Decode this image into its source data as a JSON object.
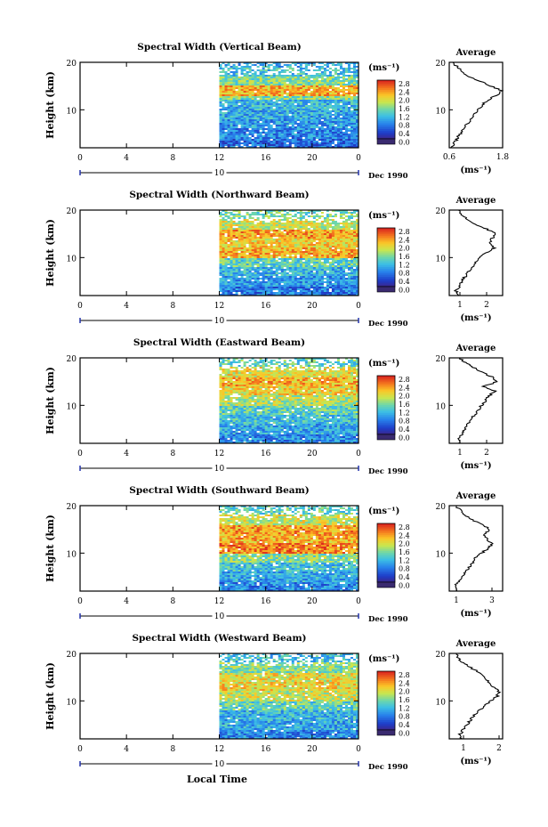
{
  "figure": {
    "x_axis_label": "Local Time",
    "date_label": "Dec 1990",
    "colorbar_unit": "(ms⁻¹)",
    "average_title": "Average",
    "average_unit": "(ms⁻¹)"
  },
  "chart_data": [
    {
      "type": "heatmap",
      "title": "Spectral Width (Vertical Beam)",
      "ylabel": "Height (km)",
      "xlabel": "Local Time",
      "xlim": [
        0,
        24
      ],
      "ylim": [
        2,
        20
      ],
      "x_ticks": [
        "0",
        "4",
        "8",
        "12",
        "16",
        "20",
        "0"
      ],
      "y_ticks": [
        "20",
        "10"
      ],
      "date_marker": "10",
      "data_start_hour": 12,
      "colorbar": {
        "unit": "(ms⁻¹)",
        "ticks": [
          "2.8",
          "2.4",
          "2.0",
          "1.6",
          "1.2",
          "0.8",
          "0.4",
          "0.0"
        ],
        "range": [
          0,
          3.0
        ]
      },
      "layers": [
        {
          "from": 2,
          "to": 4,
          "value": 0.6
        },
        {
          "from": 4,
          "to": 6,
          "value": 0.8
        },
        {
          "from": 6,
          "to": 8,
          "value": 0.9
        },
        {
          "from": 8,
          "to": 10,
          "value": 1.0
        },
        {
          "from": 10,
          "to": 12,
          "value": 1.1
        },
        {
          "from": 12,
          "to": 13,
          "value": 1.6
        },
        {
          "from": 13,
          "to": 15,
          "value": 2.3
        },
        {
          "from": 15,
          "to": 17,
          "value": 1.6
        },
        {
          "from": 17,
          "to": 19,
          "value": 1.2
        },
        {
          "from": 19,
          "to": 20,
          "value": 1.0
        }
      ],
      "average": {
        "title": "Average",
        "xlabel": "(ms⁻¹)",
        "xlim": [
          0.6,
          1.8
        ],
        "x_ticks": [
          "0.6",
          "1.8"
        ],
        "y_ticks": [
          "20",
          "10"
        ],
        "heights": [
          2,
          3,
          4,
          5,
          6,
          7,
          8,
          9,
          10,
          11,
          12,
          13,
          14,
          15,
          16,
          17,
          18,
          19,
          20
        ],
        "values": [
          0.62,
          0.72,
          0.78,
          0.85,
          0.92,
          1.0,
          1.08,
          1.15,
          1.25,
          1.35,
          1.45,
          1.65,
          1.78,
          1.55,
          1.3,
          1.05,
          0.9,
          0.78,
          0.68
        ]
      }
    },
    {
      "type": "heatmap",
      "title": "Spectral Width (Northward Beam)",
      "ylabel": "Height (km)",
      "xlabel": "Local Time",
      "xlim": [
        0,
        24
      ],
      "ylim": [
        2,
        20
      ],
      "x_ticks": [
        "0",
        "4",
        "8",
        "12",
        "16",
        "20",
        "0"
      ],
      "y_ticks": [
        "20",
        "10"
      ],
      "date_marker": "10",
      "data_start_hour": 12,
      "colorbar": {
        "unit": "(ms⁻¹)",
        "ticks": [
          "2.8",
          "2.4",
          "2.0",
          "1.6",
          "1.2",
          "0.8",
          "0.4",
          "0.0"
        ],
        "range": [
          0,
          3.0
        ]
      },
      "layers": [
        {
          "from": 2,
          "to": 4,
          "value": 0.7
        },
        {
          "from": 4,
          "to": 6,
          "value": 0.9
        },
        {
          "from": 6,
          "to": 8,
          "value": 1.1
        },
        {
          "from": 8,
          "to": 10,
          "value": 1.4
        },
        {
          "from": 10,
          "to": 12,
          "value": 2.3
        },
        {
          "from": 12,
          "to": 14,
          "value": 2.1
        },
        {
          "from": 14,
          "to": 16,
          "value": 2.4
        },
        {
          "from": 16,
          "to": 18,
          "value": 1.9
        },
        {
          "from": 18,
          "to": 20,
          "value": 1.5
        }
      ],
      "average": {
        "title": "Average",
        "xlabel": "(ms⁻¹)",
        "xlim": [
          0.6,
          2.6
        ],
        "x_ticks": [
          "1",
          "2"
        ],
        "y_ticks": [
          "20",
          "10"
        ],
        "heights": [
          2,
          3,
          4,
          5,
          6,
          7,
          8,
          9,
          10,
          11,
          12,
          13,
          14,
          15,
          16,
          17,
          18,
          19,
          20
        ],
        "values": [
          0.9,
          0.85,
          1.0,
          1.05,
          1.2,
          1.3,
          1.45,
          1.6,
          1.75,
          2.0,
          2.3,
          2.1,
          2.2,
          2.35,
          2.0,
          1.6,
          1.3,
          1.05,
          0.95
        ]
      }
    },
    {
      "type": "heatmap",
      "title": "Spectral Width (Eastward Beam)",
      "ylabel": "Height (km)",
      "xlabel": "Local Time",
      "xlim": [
        0,
        24
      ],
      "ylim": [
        2,
        20
      ],
      "x_ticks": [
        "0",
        "4",
        "8",
        "12",
        "16",
        "20",
        "0"
      ],
      "y_ticks": [
        "20",
        "10"
      ],
      "date_marker": "10",
      "data_start_hour": 12,
      "colorbar": {
        "unit": "(ms⁻¹)",
        "ticks": [
          "2.8",
          "2.4",
          "2.0",
          "1.6",
          "1.2",
          "0.8",
          "0.4",
          "0.0"
        ],
        "range": [
          0,
          3.0
        ]
      },
      "layers": [
        {
          "from": 2,
          "to": 4,
          "value": 0.8
        },
        {
          "from": 4,
          "to": 6,
          "value": 1.0
        },
        {
          "from": 6,
          "to": 8,
          "value": 1.2
        },
        {
          "from": 8,
          "to": 10,
          "value": 1.4
        },
        {
          "from": 10,
          "to": 12,
          "value": 1.8
        },
        {
          "from": 12,
          "to": 14,
          "value": 2.1
        },
        {
          "from": 14,
          "to": 16,
          "value": 2.3
        },
        {
          "from": 16,
          "to": 18,
          "value": 2.0
        },
        {
          "from": 18,
          "to": 20,
          "value": 1.4
        }
      ],
      "average": {
        "title": "Average",
        "xlabel": "(ms⁻¹)",
        "xlim": [
          0.6,
          2.6
        ],
        "x_ticks": [
          "1",
          "2"
        ],
        "y_ticks": [
          "20",
          "10"
        ],
        "heights": [
          2,
          3,
          4,
          5,
          6,
          7,
          8,
          9,
          10,
          11,
          12,
          13,
          14,
          15,
          16,
          17,
          18,
          19,
          20
        ],
        "values": [
          1.0,
          0.95,
          1.1,
          1.2,
          1.3,
          1.4,
          1.55,
          1.7,
          1.8,
          1.95,
          2.1,
          2.3,
          1.9,
          2.4,
          2.2,
          1.8,
          1.5,
          1.2,
          1.0
        ]
      }
    },
    {
      "type": "heatmap",
      "title": "Spectral Width (Southward Beam)",
      "ylabel": "Height (km)",
      "xlabel": "Local Time",
      "xlim": [
        0,
        24
      ],
      "ylim": [
        2,
        20
      ],
      "x_ticks": [
        "0",
        "4",
        "8",
        "12",
        "16",
        "20",
        "0"
      ],
      "y_ticks": [
        "20",
        "10"
      ],
      "date_marker": "10",
      "data_start_hour": 12,
      "colorbar": {
        "unit": "(ms⁻¹)",
        "ticks": [
          "2.8",
          "2.4",
          "2.0",
          "1.6",
          "1.2",
          "0.8",
          "0.4",
          "0.0"
        ],
        "range": [
          0,
          3.0
        ]
      },
      "layers": [
        {
          "from": 2,
          "to": 4,
          "value": 0.8
        },
        {
          "from": 4,
          "to": 6,
          "value": 1.0
        },
        {
          "from": 6,
          "to": 8,
          "value": 1.2
        },
        {
          "from": 8,
          "to": 10,
          "value": 1.6
        },
        {
          "from": 10,
          "to": 12,
          "value": 2.5
        },
        {
          "from": 12,
          "to": 14,
          "value": 2.3
        },
        {
          "from": 14,
          "to": 16,
          "value": 2.4
        },
        {
          "from": 16,
          "to": 18,
          "value": 1.9
        },
        {
          "from": 18,
          "to": 20,
          "value": 1.4
        }
      ],
      "average": {
        "title": "Average",
        "xlabel": "(ms⁻¹)",
        "xlim": [
          0.6,
          3.6
        ],
        "x_ticks": [
          "1",
          "3"
        ],
        "y_ticks": [
          "20",
          "10"
        ],
        "heights": [
          2,
          3,
          4,
          5,
          6,
          7,
          8,
          9,
          10,
          11,
          12,
          13,
          14,
          15,
          16,
          17,
          18,
          19,
          20
        ],
        "values": [
          1.0,
          0.95,
          1.1,
          1.3,
          1.5,
          1.7,
          1.9,
          2.1,
          2.4,
          2.8,
          3.0,
          2.7,
          2.6,
          2.9,
          2.4,
          1.9,
          1.5,
          1.2,
          1.0
        ]
      }
    },
    {
      "type": "heatmap",
      "title": "Spectral Width (Westward Beam)",
      "ylabel": "Height (km)",
      "xlabel": "Local Time",
      "xlim": [
        0,
        24
      ],
      "ylim": [
        2,
        20
      ],
      "x_ticks": [
        "0",
        "4",
        "8",
        "12",
        "16",
        "20",
        "0"
      ],
      "y_ticks": [
        "20",
        "10"
      ],
      "date_marker": "10",
      "data_start_hour": 12,
      "colorbar": {
        "unit": "(ms⁻¹)",
        "ticks": [
          "2.8",
          "2.4",
          "2.0",
          "1.6",
          "1.2",
          "0.8",
          "0.4",
          "0.0"
        ],
        "range": [
          0,
          3.0
        ]
      },
      "layers": [
        {
          "from": 2,
          "to": 4,
          "value": 0.8
        },
        {
          "from": 4,
          "to": 6,
          "value": 1.0
        },
        {
          "from": 6,
          "to": 8,
          "value": 1.1
        },
        {
          "from": 8,
          "to": 10,
          "value": 1.4
        },
        {
          "from": 10,
          "to": 12,
          "value": 1.9
        },
        {
          "from": 12,
          "to": 14,
          "value": 2.1
        },
        {
          "from": 14,
          "to": 16,
          "value": 2.0
        },
        {
          "from": 16,
          "to": 18,
          "value": 1.6
        },
        {
          "from": 18,
          "to": 20,
          "value": 1.2
        }
      ],
      "average": {
        "title": "Average",
        "xlabel": "(ms⁻¹)",
        "xlim": [
          0.6,
          2.1
        ],
        "x_ticks": [
          "1",
          "2"
        ],
        "y_ticks": [
          "20",
          "10"
        ],
        "heights": [
          2,
          3,
          4,
          5,
          6,
          7,
          8,
          9,
          10,
          11,
          12,
          13,
          14,
          15,
          16,
          17,
          18,
          19,
          20
        ],
        "values": [
          0.95,
          0.9,
          1.0,
          1.1,
          1.2,
          1.3,
          1.45,
          1.6,
          1.75,
          1.95,
          2.0,
          1.85,
          1.7,
          1.6,
          1.45,
          1.2,
          1.0,
          0.85,
          0.8
        ]
      }
    }
  ]
}
